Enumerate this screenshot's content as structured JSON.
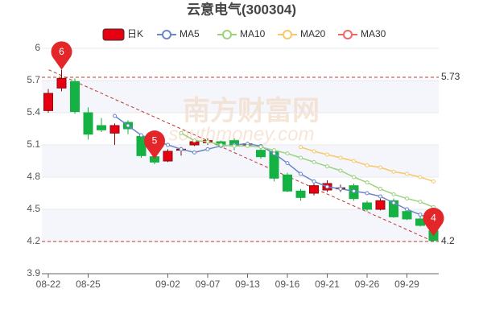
{
  "chart_data": {
    "type": "candlestick",
    "title": "云意电气(300304)",
    "watermark": "南方财富网",
    "watermark_sub": "southmoney.com",
    "categories": [
      "08-22",
      null,
      null,
      "08-25",
      null,
      null,
      null,
      null,
      null,
      "09-02",
      null,
      null,
      "09-07",
      null,
      null,
      "09-13",
      null,
      null,
      "09-16",
      null,
      null,
      "09-21",
      null,
      null,
      "09-26",
      null,
      null,
      "09-29",
      null,
      null
    ],
    "candles": {
      "name": "日K",
      "color": "#e60012",
      "border": "#8a0a0a",
      "down_color": "#14b143",
      "open": [
        5.42,
        5.63,
        5.69,
        5.4,
        5.28,
        5.21,
        5.31,
        5.18,
        4.99,
        4.95,
        5.05,
        5.1,
        5.12,
        5.13,
        5.14,
        5.1,
        5.05,
        5.04,
        4.82,
        4.67,
        4.65,
        4.68,
        4.69,
        4.72,
        4.56,
        4.5,
        4.58,
        4.48,
        4.41,
        4.3
      ],
      "close": [
        5.58,
        5.72,
        5.41,
        5.2,
        5.24,
        5.28,
        5.25,
        5.0,
        4.94,
        5.04,
        5.06,
        5.13,
        5.14,
        5.1,
        5.09,
        5.11,
        4.99,
        4.79,
        4.67,
        4.61,
        4.72,
        4.74,
        4.7,
        4.6,
        4.5,
        4.58,
        4.43,
        4.41,
        4.35,
        4.21
      ],
      "high": [
        5.62,
        5.8,
        5.72,
        5.45,
        5.35,
        5.3,
        5.33,
        5.2,
        5.02,
        5.06,
        5.08,
        5.14,
        5.16,
        5.14,
        5.16,
        5.13,
        5.07,
        5.05,
        4.84,
        4.69,
        4.74,
        4.77,
        4.73,
        4.74,
        4.58,
        4.6,
        4.6,
        4.5,
        4.43,
        4.32
      ],
      "low": [
        5.4,
        5.6,
        5.39,
        5.15,
        5.22,
        5.1,
        5.2,
        4.98,
        4.92,
        4.94,
        5.0,
        5.09,
        5.1,
        5.08,
        5.05,
        5.08,
        4.97,
        4.76,
        4.66,
        4.58,
        4.63,
        4.66,
        4.66,
        4.58,
        4.48,
        4.49,
        4.42,
        4.4,
        4.34,
        4.2
      ]
    },
    "series": [
      {
        "name": "MA5",
        "color": "#6a86c8",
        "values": [
          null,
          null,
          null,
          null,
          null,
          5.37,
          5.28,
          5.19,
          5.14,
          5.1,
          5.06,
          5.03,
          5.06,
          5.09,
          5.1,
          5.11,
          5.09,
          5.02,
          4.93,
          4.83,
          4.76,
          4.71,
          4.69,
          4.67,
          4.65,
          4.62,
          4.56,
          4.5,
          4.45,
          4.4
        ]
      },
      {
        "name": "MA10",
        "color": "#9dd17e",
        "values": [
          null,
          null,
          null,
          null,
          null,
          null,
          null,
          null,
          null,
          null,
          5.21,
          5.14,
          5.13,
          5.1,
          5.09,
          5.09,
          5.08,
          5.05,
          5.02,
          4.98,
          4.94,
          4.9,
          4.86,
          4.8,
          4.75,
          4.69,
          4.64,
          4.6,
          4.57,
          4.52
        ]
      },
      {
        "name": "MA20",
        "color": "#f6c86a",
        "values": [
          null,
          null,
          null,
          null,
          null,
          null,
          null,
          null,
          null,
          null,
          null,
          null,
          null,
          null,
          null,
          null,
          null,
          null,
          null,
          5.08,
          5.04,
          5.01,
          4.98,
          4.95,
          4.91,
          4.89,
          4.85,
          4.83,
          4.8,
          4.76
        ]
      },
      {
        "name": "MA30",
        "color": "#ee6666",
        "values": [
          null,
          null,
          null,
          null,
          null,
          null,
          null,
          null,
          null,
          null,
          null,
          null,
          null,
          null,
          null,
          null,
          null,
          null,
          null,
          null,
          null,
          null,
          null,
          null,
          null,
          null,
          null,
          null,
          null,
          null
        ]
      }
    ],
    "ylim": [
      3.9,
      6.0
    ],
    "yticks": [
      3.9,
      4.2,
      4.5,
      4.8,
      5.1,
      5.4,
      5.7,
      6
    ],
    "mark_lines": [
      5.73,
      4.2
    ],
    "mark_points": [
      {
        "index": 1,
        "value": 5.8,
        "label": "6"
      },
      {
        "index": 8,
        "value": 4.97,
        "label": "5"
      },
      {
        "index": 29,
        "value": 4.25,
        "label": "4"
      }
    ],
    "grid": true
  }
}
